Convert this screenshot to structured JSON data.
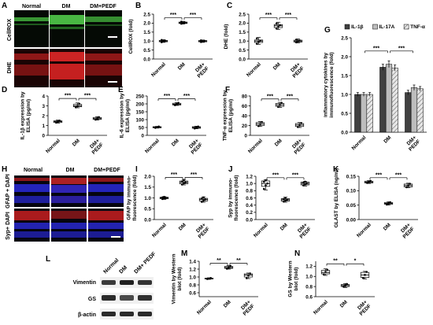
{
  "panels": {
    "A": {
      "letter": "A",
      "columns": [
        "Normal",
        "DM",
        "DM+PEDF"
      ],
      "rows": [
        "CellROX",
        "DHE"
      ],
      "colors": {
        "cellrox": "#3fa63a",
        "dhe": "#c82020"
      }
    },
    "H": {
      "letter": "H",
      "columns": [
        "Normal",
        "DM",
        "DM+PEDF"
      ],
      "rows": [
        "GFAP + DAPI",
        "Syp+ DAPI"
      ],
      "colors": {
        "dapi": "#2a2ad8",
        "marker": "#c82020"
      }
    },
    "L": {
      "letter": "L",
      "columns": [
        "Normal",
        "DM",
        "DM+ PEDF"
      ],
      "rows": [
        "Vimentin",
        "GS",
        "β-actin"
      ]
    }
  },
  "sig": {
    "three": "***",
    "two": "**",
    "one": "*"
  },
  "chart_data": [
    {
      "id": "B",
      "letter": "B",
      "type": "box",
      "categories": [
        "Normal",
        "DM",
        "DM+ PEDF"
      ],
      "ylabel": "CellROX (fold)",
      "ylim": [
        0,
        2.5
      ],
      "yticks": [
        0,
        0.5,
        1.0,
        1.5,
        2.0,
        2.5
      ],
      "ytick_labels": [
        "0.0",
        "0.5",
        "1.0",
        "1.5",
        "2.0",
        "2.5"
      ],
      "boxes": [
        [
          0.93,
          0.96,
          1.0,
          1.04,
          1.08
        ],
        [
          1.95,
          1.98,
          2.02,
          2.06,
          2.1
        ],
        [
          0.93,
          0.96,
          1.0,
          1.03,
          1.06
        ]
      ],
      "points": [
        [
          0.94,
          0.98,
          1.02,
          1.06
        ],
        [
          1.97,
          2.0,
          2.04,
          2.08
        ],
        [
          0.95,
          0.99,
          1.01,
          1.04
        ]
      ],
      "sig": [
        {
          "from": 0,
          "to": 1,
          "label": "***",
          "y": 2.3
        },
        {
          "from": 1,
          "to": 2,
          "label": "***",
          "y": 2.3
        }
      ]
    },
    {
      "id": "C",
      "letter": "C",
      "type": "box",
      "categories": [
        "Normal",
        "DM",
        "DM+ PEDF"
      ],
      "ylabel": "DHE (fold)",
      "ylim": [
        0,
        2.5
      ],
      "yticks": [
        0,
        0.5,
        1.0,
        1.5,
        2.0,
        2.5
      ],
      "ytick_labels": [
        "0.0",
        "0.5",
        "1.0",
        "1.5",
        "2.0",
        "2.5"
      ],
      "boxes": [
        [
          0.82,
          0.92,
          1.0,
          1.06,
          1.2
        ],
        [
          1.65,
          1.75,
          1.85,
          1.92,
          2.05
        ],
        [
          0.9,
          0.95,
          1.0,
          1.05,
          1.12
        ]
      ],
      "points": [
        [
          0.85,
          0.97,
          1.02,
          1.15
        ],
        [
          1.7,
          1.82,
          1.88,
          1.98
        ],
        [
          0.93,
          0.99,
          1.03,
          1.08
        ]
      ],
      "sig": [
        {
          "from": 0,
          "to": 1,
          "label": "***",
          "y": 2.3
        },
        {
          "from": 1,
          "to": 2,
          "label": "***",
          "y": 2.3
        }
      ]
    },
    {
      "id": "D",
      "letter": "D",
      "type": "box",
      "categories": [
        "Normal",
        "DM",
        "DM+ PEDF"
      ],
      "ylabel": "IL-1β expression by ELISA (pg/ml)",
      "ylim": [
        0,
        4
      ],
      "yticks": [
        0,
        1,
        2,
        3,
        4
      ],
      "ytick_labels": [
        "0",
        "1",
        "2",
        "3",
        "4"
      ],
      "boxes": [
        [
          1.25,
          1.3,
          1.4,
          1.48,
          1.55
        ],
        [
          2.8,
          2.9,
          3.0,
          3.15,
          3.3
        ],
        [
          1.55,
          1.62,
          1.7,
          1.82,
          1.9
        ]
      ],
      "points": [
        [
          1.3,
          1.4,
          1.5
        ],
        [
          2.85,
          3.0,
          3.2
        ],
        [
          1.6,
          1.7,
          1.85
        ]
      ],
      "sig": [
        {
          "from": 0,
          "to": 1,
          "label": "***",
          "y": 3.75
        },
        {
          "from": 1,
          "to": 2,
          "label": "***",
          "y": 3.75
        }
      ]
    },
    {
      "id": "E",
      "letter": "E",
      "type": "box",
      "categories": [
        "Normal",
        "DM",
        "DM+ PEDF"
      ],
      "ylabel": "IL-6 expression by ELISA (pg/ml)",
      "ylim": [
        0,
        250
      ],
      "yticks": [
        0,
        50,
        100,
        150,
        200,
        250
      ],
      "ytick_labels": [
        "0",
        "50",
        "100",
        "150",
        "200",
        "250"
      ],
      "boxes": [
        [
          46,
          48,
          52,
          55,
          57
        ],
        [
          190,
          193,
          198,
          204,
          208
        ],
        [
          42,
          45,
          50,
          55,
          58
        ]
      ],
      "points": [
        [
          48,
          52,
          56
        ],
        [
          192,
          198,
          206
        ],
        [
          44,
          50,
          56
        ]
      ],
      "sig": [
        {
          "from": 0,
          "to": 1,
          "label": "***",
          "y": 232
        },
        {
          "from": 1,
          "to": 2,
          "label": "***",
          "y": 232
        }
      ]
    },
    {
      "id": "F",
      "letter": "F",
      "type": "box",
      "categories": [
        "Normal",
        "DM",
        "DM+ PEDF"
      ],
      "ylabel": "TNF-α expression by ELISA (pg/ml)",
      "ylim": [
        0,
        80
      ],
      "yticks": [
        0,
        20,
        40,
        60,
        80
      ],
      "ytick_labels": [
        "0",
        "20",
        "40",
        "60",
        "80"
      ],
      "boxes": [
        [
          18,
          20,
          23,
          26,
          28
        ],
        [
          57,
          59,
          62,
          65,
          67
        ],
        [
          16,
          18,
          21,
          24,
          26
        ]
      ],
      "points": [
        [
          19,
          23,
          27
        ],
        [
          58,
          62,
          66
        ],
        [
          17,
          21,
          25
        ]
      ],
      "sig": [
        {
          "from": 0,
          "to": 1,
          "label": "***",
          "y": 74
        },
        {
          "from": 1,
          "to": 2,
          "label": "***",
          "y": 74
        }
      ]
    },
    {
      "id": "G",
      "letter": "G",
      "type": "bar",
      "categories": [
        "Normal",
        "DM",
        "DM+ PEDF"
      ],
      "ylabel": "inflammatory cytokines by immunofluorescence (fold)",
      "ylim": [
        0,
        2.5
      ],
      "yticks": [
        0,
        0.5,
        1.0,
        1.5,
        2.0,
        2.5
      ],
      "ytick_labels": [
        "0.0",
        "0.5",
        "1.0",
        "1.5",
        "2.0",
        "2.5"
      ],
      "series": [
        {
          "name": "IL-1β",
          "color": "#404040",
          "pattern": "solid",
          "values": [
            1.0,
            1.72,
            1.05
          ],
          "errors": [
            0.05,
            0.08,
            0.06
          ]
        },
        {
          "name": "IL-17A",
          "color": "#bdbdbd",
          "pattern": "solid",
          "values": [
            1.0,
            1.8,
            1.18
          ],
          "errors": [
            0.05,
            0.09,
            0.07
          ]
        },
        {
          "name": "TNF-α",
          "color": "#e6e6e6",
          "pattern": "hatch",
          "values": [
            1.0,
            1.7,
            1.15
          ],
          "errors": [
            0.05,
            0.08,
            0.06
          ]
        }
      ],
      "sig": [
        {
          "from": 0,
          "to": 1,
          "label": "***",
          "y": 2.15
        },
        {
          "from": 1,
          "to": 2,
          "label": "***",
          "y": 2.15
        }
      ]
    },
    {
      "id": "I",
      "letter": "I",
      "type": "box",
      "categories": [
        "Normal",
        "DM",
        "DM+ PEDF"
      ],
      "ylabel": "GFAP by immuno- fluorescence (fold)",
      "ylim": [
        0,
        2.0
      ],
      "yticks": [
        0,
        0.5,
        1.0,
        1.5,
        2.0
      ],
      "ytick_labels": [
        "0.0",
        "0.5",
        "1.0",
        "1.5",
        "2.0"
      ],
      "boxes": [
        [
          0.93,
          0.96,
          1.0,
          1.03,
          1.06
        ],
        [
          1.6,
          1.65,
          1.72,
          1.78,
          1.85
        ],
        [
          0.8,
          0.86,
          0.93,
          0.98,
          1.05
        ]
      ],
      "points": [
        [
          0.95,
          0.98,
          1.0,
          1.02,
          1.05
        ],
        [
          1.62,
          1.68,
          1.72,
          1.76,
          1.82
        ],
        [
          0.82,
          0.88,
          0.93,
          0.97,
          1.02
        ]
      ],
      "sig": [
        {
          "from": 0,
          "to": 1,
          "label": "***",
          "y": 1.95
        },
        {
          "from": 1,
          "to": 2,
          "label": "***",
          "y": 1.95
        }
      ]
    },
    {
      "id": "J",
      "letter": "J",
      "type": "box",
      "categories": [
        "Normal",
        "DM",
        "DM+ PEDF"
      ],
      "ylabel": "Syp by immuno- fluorescence (fold)",
      "ylim": [
        0,
        1.2
      ],
      "yticks": [
        0,
        0.2,
        0.4,
        0.6,
        0.8,
        1.0,
        1.2
      ],
      "ytick_labels": [
        "0.0",
        "0.2",
        "0.4",
        "0.6",
        "0.8",
        "1.0",
        "1.2"
      ],
      "boxes": [
        [
          0.82,
          0.92,
          1.0,
          1.07,
          1.1
        ],
        [
          0.48,
          0.51,
          0.55,
          0.58,
          0.62
        ],
        [
          0.93,
          0.96,
          1.0,
          1.04,
          1.06
        ]
      ],
      "points": [
        [
          0.85,
          0.95,
          1.0,
          1.05,
          1.09
        ],
        [
          0.5,
          0.53,
          0.55,
          0.57,
          0.6
        ],
        [
          0.95,
          0.98,
          1.0,
          1.02,
          1.05
        ]
      ],
      "sig": [
        {
          "from": 0,
          "to": 1,
          "label": "***",
          "y": 1.16
        },
        {
          "from": 1,
          "to": 2,
          "label": "***",
          "y": 1.16
        }
      ]
    },
    {
      "id": "K",
      "letter": "K",
      "type": "box",
      "categories": [
        "Normal",
        "DM",
        "DM+ PEDF"
      ],
      "ylabel": "GLAST by ELISA (ng/ml)",
      "ylim": [
        0,
        0.15
      ],
      "yticks": [
        0,
        0.05,
        0.1,
        0.15
      ],
      "ytick_labels": [
        "0.00",
        "0.05",
        "0.10",
        "0.15"
      ],
      "boxes": [
        [
          0.125,
          0.127,
          0.13,
          0.133,
          0.135
        ],
        [
          0.05,
          0.053,
          0.056,
          0.059,
          0.062
        ],
        [
          0.11,
          0.113,
          0.118,
          0.123,
          0.126
        ]
      ],
      "points": [
        [
          0.127,
          0.13,
          0.134
        ],
        [
          0.052,
          0.056,
          0.06
        ],
        [
          0.112,
          0.118,
          0.124
        ]
      ],
      "sig": [
        {
          "from": 0,
          "to": 1,
          "label": "***",
          "y": 0.145
        },
        {
          "from": 1,
          "to": 2,
          "label": "***",
          "y": 0.145
        }
      ]
    },
    {
      "id": "M",
      "letter": "M",
      "type": "box",
      "categories": [
        "Normal",
        "DM",
        "DM+ PEDF"
      ],
      "ylabel": "Vimentin by Western blot (fold)",
      "ylim": [
        0.5,
        1.4
      ],
      "yticks": [
        0.6,
        0.8,
        1.0,
        1.2,
        1.4
      ],
      "ytick_labels": [
        "0.6",
        "0.8",
        "1.0",
        "1.2",
        "1.4"
      ],
      "boxes": [
        [
          0.94,
          0.95,
          0.96,
          0.97,
          0.98
        ],
        [
          1.2,
          1.22,
          1.24,
          1.27,
          1.29
        ],
        [
          0.96,
          1.0,
          1.05,
          1.08,
          1.1
        ]
      ],
      "points": [
        [
          0.95,
          0.96,
          0.975
        ],
        [
          1.21,
          1.24,
          1.28
        ],
        [
          0.97,
          1.04,
          1.09
        ]
      ],
      "sig": [
        {
          "from": 0,
          "to": 1,
          "label": "**",
          "y": 1.35
        },
        {
          "from": 1,
          "to": 2,
          "label": "**",
          "y": 1.35
        }
      ]
    },
    {
      "id": "N",
      "letter": "N",
      "type": "box",
      "categories": [
        "Normal",
        "DM",
        "DM+ PEDF"
      ],
      "ylabel": "GS by Western blot (fold)",
      "ylim": [
        0.6,
        1.3
      ],
      "yticks": [
        0.6,
        0.8,
        1.0,
        1.2
      ],
      "ytick_labels": [
        "0.6",
        "0.8",
        "1.0",
        "1.2"
      ],
      "boxes": [
        [
          1.02,
          1.05,
          1.08,
          1.12,
          1.15
        ],
        [
          0.78,
          0.8,
          0.82,
          0.84,
          0.86
        ],
        [
          0.95,
          0.98,
          1.03,
          1.08,
          1.1
        ]
      ],
      "points": [
        [
          1.04,
          1.09,
          1.13
        ],
        [
          0.8,
          0.82,
          0.85
        ],
        [
          0.97,
          1.03,
          1.09
        ]
      ],
      "sig": [
        {
          "from": 0,
          "to": 1,
          "label": "**",
          "y": 1.25
        },
        {
          "from": 1,
          "to": 2,
          "label": "*",
          "y": 1.25
        }
      ]
    }
  ]
}
